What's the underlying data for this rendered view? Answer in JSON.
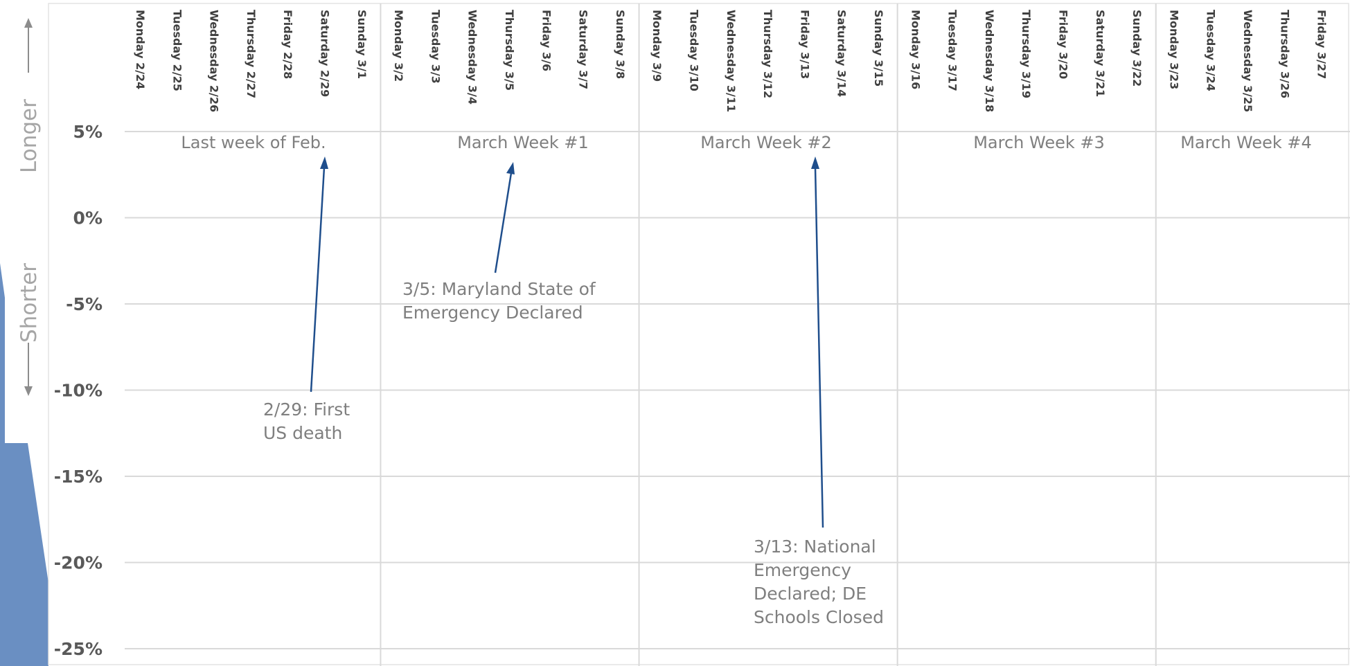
{
  "chart_data": {
    "type": "bar",
    "y_tick_labels": [
      "5%",
      "0%",
      "-5%",
      "-10%",
      "-15%",
      "-20%",
      "-25%"
    ],
    "y_ticks": [
      5,
      0,
      -5,
      -10,
      -15,
      -20,
      -25
    ],
    "ylim": [
      -25,
      5
    ],
    "days": [
      "Monday 2/24",
      "Tuesday 2/25",
      "Wednesday 2/26",
      "Thursday 2/27",
      "Friday 2/28",
      "Saturday 2/29",
      "Sunday 3/1",
      "Monday 3/2",
      "Tuesday 3/3",
      "Wednesday 3/4",
      "Thursday 3/5",
      "Friday 3/6",
      "Saturday 3/7",
      "Sunday 3/8",
      "Monday 3/9",
      "Tuesday 3/10",
      "Wednesday 3/11",
      "Thursday 3/12",
      "Friday 3/13",
      "Saturday 3/14",
      "Sunday 3/15",
      "Monday 3/16",
      "Tuesday 3/17",
      "Wednesday 3/18",
      "Thursday 3/19",
      "Friday 3/20",
      "Saturday 3/21",
      "Sunday 3/22",
      "Monday 3/23",
      "Tuesday 3/24",
      "Wednesday 3/25",
      "Thursday 3/26",
      "Friday 3/27"
    ],
    "weeks": [
      "Last week of Feb.",
      "March Week #1",
      "March Week #2",
      "March Week #3",
      "March Week #4"
    ],
    "direction_labels": {
      "up": "Longer",
      "down": "Shorter"
    },
    "annotations": [
      {
        "lines": [
          "2/29: First",
          "US death"
        ],
        "day": "Saturday 2/29"
      },
      {
        "lines": [
          "3/5: Maryland State of",
          "Emergency Declared"
        ],
        "day": "Thursday 3/5"
      },
      {
        "lines": [
          "3/13: National",
          "Emergency",
          "Declared; DE",
          "Schools Closed"
        ],
        "day": "Friday 3/13"
      }
    ],
    "colors": {
      "bar": "#6a8fc2",
      "pointer": "#1f4e8c",
      "grid": "#d9d9d9"
    },
    "grid": true
  }
}
